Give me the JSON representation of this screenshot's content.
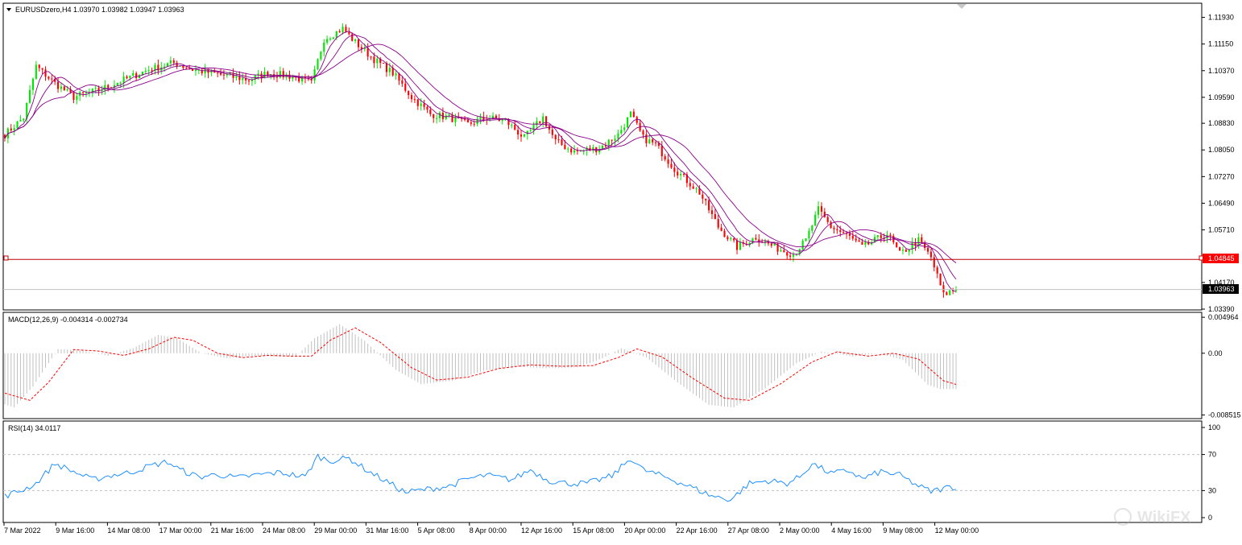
{
  "header": {
    "symbol_label": "EURUSDzero,H4  1.03970 1.03982 1.03947 1.03963",
    "macd_label": "MACD(12,26,9) -0.004314 -0.002734",
    "rsi_label": "RSI(14) 34.0117",
    "watermark_text": "WikiFX"
  },
  "colors": {
    "bull": "#00e600",
    "bear": "#ff0000",
    "ma": "#8b008b",
    "level_line": "#c00000",
    "level_box_bg": "#ff0000",
    "bid_box_bg": "#000000",
    "macd_hist": "#c0c0c0",
    "macd_signal": "#ff0000",
    "rsi": "#1e90ff",
    "grid": "#c0c0c0"
  },
  "chart_data": [
    {
      "type": "candlestick",
      "symbol": "EURUSDzero",
      "timeframe": "H4",
      "ohlc_last": {
        "open": 1.0397,
        "high": 1.03982,
        "low": 1.03947,
        "close": 1.03963
      },
      "x_labels": [
        "7 Mar 2022",
        "9 Mar 16:00",
        "14 Mar 08:00",
        "17 Mar 00:00",
        "21 Mar 16:00",
        "24 Mar 08:00",
        "29 Mar 00:00",
        "31 Mar 16:00",
        "5 Apr 08:00",
        "8 Apr 00:00",
        "12 Apr 16:00",
        "15 Apr 08:00",
        "20 Apr 00:00",
        "22 Apr 16:00",
        "27 Apr 08:00",
        "2 May 00:00",
        "4 May 16:00",
        "9 May 08:00",
        "12 May 00:00"
      ],
      "y_ticks": [
        "1.11930",
        "1.11150",
        "1.10370",
        "1.09590",
        "1.08830",
        "1.08050",
        "1.07270",
        "1.06490",
        "1.05710",
        "1.04170",
        "1.03390"
      ],
      "ylim": [
        1.0339,
        1.1225
      ],
      "horizontal_level": 1.04845,
      "horizontal_level_label": "1.04845",
      "bid_line": 1.03963,
      "bid_label": "1.03963",
      "close_anchors": [
        [
          0,
          1.085
        ],
        [
          6,
          1.09
        ],
        [
          10,
          1.105
        ],
        [
          16,
          1.1
        ],
        [
          22,
          1.096
        ],
        [
          30,
          1.098
        ],
        [
          38,
          1.101
        ],
        [
          46,
          1.104
        ],
        [
          54,
          1.106
        ],
        [
          60,
          1.104
        ],
        [
          66,
          1.103
        ],
        [
          72,
          1.102
        ],
        [
          78,
          1.101
        ],
        [
          84,
          1.103
        ],
        [
          92,
          1.102
        ],
        [
          98,
          1.1
        ],
        [
          102,
          1.113
        ],
        [
          108,
          1.116
        ],
        [
          112,
          1.112
        ],
        [
          118,
          1.107
        ],
        [
          124,
          1.103
        ],
        [
          130,
          1.096
        ],
        [
          136,
          1.091
        ],
        [
          142,
          1.09
        ],
        [
          148,
          1.088
        ],
        [
          154,
          1.09
        ],
        [
          160,
          1.089
        ],
        [
          166,
          1.084
        ],
        [
          172,
          1.09
        ],
        [
          176,
          1.083
        ],
        [
          182,
          1.08
        ],
        [
          190,
          1.081
        ],
        [
          196,
          1.085
        ],
        [
          200,
          1.091
        ],
        [
          204,
          1.084
        ],
        [
          208,
          1.082
        ],
        [
          214,
          1.075
        ],
        [
          222,
          1.068
        ],
        [
          228,
          1.058
        ],
        [
          234,
          1.052
        ],
        [
          240,
          1.055
        ],
        [
          246,
          1.052
        ],
        [
          252,
          1.05
        ],
        [
          256,
          1.054
        ],
        [
          260,
          1.063
        ],
        [
          264,
          1.058
        ],
        [
          270,
          1.055
        ],
        [
          274,
          1.052
        ],
        [
          278,
          1.054
        ],
        [
          282,
          1.056
        ],
        [
          286,
          1.05
        ],
        [
          292,
          1.054
        ],
        [
          296,
          1.049
        ],
        [
          300,
          1.038
        ],
        [
          304,
          1.04
        ]
      ],
      "series_count": 305
    },
    {
      "type": "bar",
      "name": "MACD(12,26,9)",
      "main": -0.004314,
      "signal": -0.002734,
      "y_ticks": [
        "0.004964",
        "0.00",
        "-0.008515"
      ],
      "ylim": [
        -0.0088,
        0.0052
      ],
      "anchors": [
        [
          0,
          -0.0055
        ],
        [
          8,
          -0.0065
        ],
        [
          14,
          -0.004
        ],
        [
          22,
          0.0005
        ],
        [
          30,
          0.0003
        ],
        [
          38,
          -0.0003
        ],
        [
          46,
          0.0006
        ],
        [
          54,
          0.0022
        ],
        [
          60,
          0.0018
        ],
        [
          68,
          0.0
        ],
        [
          76,
          -0.0006
        ],
        [
          84,
          -0.0003
        ],
        [
          92,
          -0.0004
        ],
        [
          98,
          -0.0004
        ],
        [
          104,
          0.0018
        ],
        [
          112,
          0.0035
        ],
        [
          120,
          0.0015
        ],
        [
          130,
          -0.002
        ],
        [
          138,
          -0.0037
        ],
        [
          148,
          -0.0033
        ],
        [
          158,
          -0.0021
        ],
        [
          168,
          -0.0016
        ],
        [
          178,
          -0.0018
        ],
        [
          188,
          -0.0017
        ],
        [
          196,
          -0.0006
        ],
        [
          202,
          0.0006
        ],
        [
          210,
          -0.0005
        ],
        [
          220,
          -0.0035
        ],
        [
          230,
          -0.0062
        ],
        [
          238,
          -0.0065
        ],
        [
          248,
          -0.0042
        ],
        [
          258,
          -0.0012
        ],
        [
          266,
          0.0002
        ],
        [
          276,
          -0.0004
        ],
        [
          284,
          0.0
        ],
        [
          292,
          -0.0008
        ],
        [
          300,
          -0.0038
        ],
        [
          304,
          -0.0043
        ]
      ]
    },
    {
      "type": "line",
      "name": "RSI(14)",
      "value": 34.0117,
      "y_ticks": [
        "100",
        "70",
        "30",
        "0"
      ],
      "levels": [
        70,
        30
      ],
      "ylim": [
        0,
        100
      ],
      "anchors": [
        [
          0,
          24
        ],
        [
          6,
          31
        ],
        [
          10,
          38
        ],
        [
          16,
          60
        ],
        [
          22,
          51
        ],
        [
          28,
          42
        ],
        [
          34,
          47
        ],
        [
          40,
          50
        ],
        [
          46,
          57
        ],
        [
          52,
          62
        ],
        [
          56,
          53
        ],
        [
          62,
          45
        ],
        [
          68,
          48
        ],
        [
          74,
          44
        ],
        [
          82,
          48
        ],
        [
          88,
          50
        ],
        [
          96,
          45
        ],
        [
          100,
          68
        ],
        [
          104,
          63
        ],
        [
          110,
          66
        ],
        [
          116,
          52
        ],
        [
          122,
          40
        ],
        [
          128,
          28
        ],
        [
          134,
          31
        ],
        [
          142,
          35
        ],
        [
          148,
          43
        ],
        [
          154,
          47
        ],
        [
          162,
          42
        ],
        [
          168,
          53
        ],
        [
          174,
          41
        ],
        [
          180,
          38
        ],
        [
          186,
          38
        ],
        [
          194,
          46
        ],
        [
          200,
          66
        ],
        [
          204,
          53
        ],
        [
          212,
          44
        ],
        [
          220,
          33
        ],
        [
          226,
          24
        ],
        [
          232,
          20
        ],
        [
          238,
          38
        ],
        [
          244,
          41
        ],
        [
          250,
          38
        ],
        [
          254,
          45
        ],
        [
          258,
          60
        ],
        [
          264,
          49
        ],
        [
          270,
          52
        ],
        [
          274,
          43
        ],
        [
          280,
          51
        ],
        [
          286,
          47
        ],
        [
          292,
          35
        ],
        [
          296,
          29
        ],
        [
          302,
          34
        ],
        [
          304,
          34
        ]
      ]
    }
  ]
}
